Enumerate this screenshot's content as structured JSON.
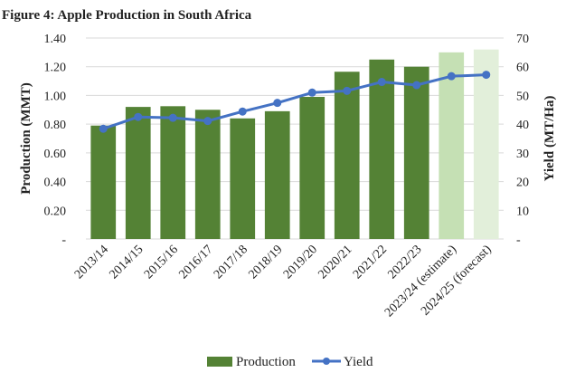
{
  "chart_data": {
    "type": "bar+line",
    "title": "Figure 4: Apple Production in South Africa",
    "categories": [
      "2013/14",
      "2014/15",
      "2015/16",
      "2016/17",
      "2017/18",
      "2018/19",
      "2019/20",
      "2020/21",
      "2021/22",
      "2022/23",
      "2023/24 (estimate)",
      "2024/25 (forecast)"
    ],
    "series": [
      {
        "name": "Production",
        "type": "bar",
        "axis": "left",
        "values": [
          0.79,
          0.92,
          0.925,
          0.9,
          0.84,
          0.89,
          0.99,
          1.165,
          1.25,
          1.2,
          1.3,
          1.32
        ],
        "colors": [
          "#548235",
          "#548235",
          "#548235",
          "#548235",
          "#548235",
          "#548235",
          "#548235",
          "#548235",
          "#548235",
          "#548235",
          "#C5E0B4",
          "#E2EFDA"
        ]
      },
      {
        "name": "Yield",
        "type": "line",
        "axis": "right",
        "values": [
          38.4,
          42.5,
          42.2,
          41.1,
          44.4,
          47.4,
          51.0,
          51.6,
          54.7,
          53.6,
          56.7,
          57.2
        ],
        "color": "#4472C4"
      }
    ],
    "ylabel": "Production (MMT)",
    "y2label": "Yield (MT/Ha)",
    "ylim": [
      0,
      1.4
    ],
    "y2lim": [
      0,
      70
    ],
    "yticks": [
      "-",
      "0.20",
      "0.40",
      "0.60",
      "0.80",
      "1.00",
      "1.20",
      "1.40"
    ],
    "y2ticks": [
      "-",
      "10",
      "20",
      "30",
      "40",
      "50",
      "60",
      "70"
    ],
    "grid": true,
    "legend": "bottom"
  }
}
